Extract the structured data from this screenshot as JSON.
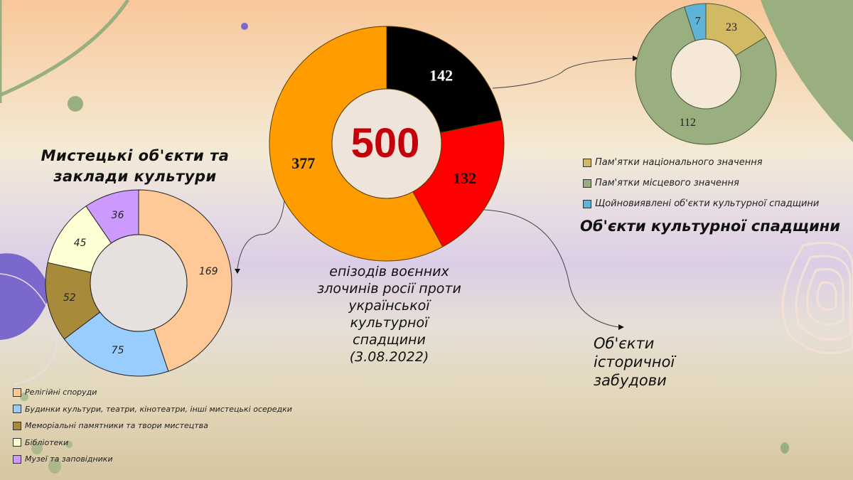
{
  "main": {
    "total": "500",
    "caption_lines": [
      "епізодів воєнних",
      "злочинів росії проти",
      "української",
      "культурної",
      "спадщини",
      "(3.08.2022)"
    ],
    "segments": [
      {
        "label": "Об'єкти культурної спадщини",
        "value": 142,
        "value_label": "142",
        "color": "#000000",
        "text_color": "#ffffff"
      },
      {
        "label": "Об'єкти історичної забудови",
        "value": 132,
        "value_label": "132",
        "color": "#ff0000",
        "text_color": "#111111"
      },
      {
        "label": "Мистецькі об'єкти та заклади культури",
        "value": 377,
        "value_label": "377",
        "color": "#ff9c00",
        "text_color": "#111111"
      }
    ]
  },
  "left": {
    "title_lines": [
      "Мистецькі об'єкти та",
      "заклади культури"
    ],
    "segments": [
      {
        "label": "Релігійні споруди",
        "value": 169,
        "value_label": "169",
        "color": "#ffc897"
      },
      {
        "label": "Будинки культури, театри, кінотеатри, інші мистецькі осередки",
        "value": 75,
        "value_label": "75",
        "color": "#99ccff"
      },
      {
        "label": "Меморіальні памятники та твори мистецтва",
        "value": 52,
        "value_label": "52",
        "color": "#a88b3a"
      },
      {
        "label": "Бібліотеки",
        "value": 45,
        "value_label": "45",
        "color": "#ffffd5"
      },
      {
        "label": "Музеї та заповідники",
        "value": 36,
        "value_label": "36",
        "color": "#cc99ff"
      }
    ]
  },
  "right": {
    "title": "Об'єкти культурної спадщини",
    "segments": [
      {
        "label": "Пам'ятки національного значення",
        "value": 23,
        "value_label": "23",
        "color": "#d2b963"
      },
      {
        "label": "Пам'ятки місцевого значення",
        "value": 112,
        "value_label": "112",
        "color": "#9aaf80"
      },
      {
        "label": "Щойновиявлені об'єкти культурної спадщини",
        "value": 7,
        "value_label": "7",
        "color": "#5fb3d6"
      }
    ]
  },
  "history": {
    "caption_lines": [
      "Об'єкти",
      "історичної",
      "забудови"
    ]
  },
  "chart_data": [
    {
      "type": "pie",
      "title": "500 епізодів воєнних злочинів росії проти української культурної спадщини (3.08.2022)",
      "categories": [
        "Об'єкти культурної спадщини",
        "Об'єкти історичної забудови",
        "Мистецькі об'єкти та заклади культури"
      ],
      "values": [
        142,
        132,
        377
      ],
      "center_label": "500",
      "donut": true
    },
    {
      "type": "pie",
      "title": "Мистецькі об'єкти та заклади культури",
      "categories": [
        "Релігійні споруди",
        "Будинки культури, театри, кінотеатри, інші мистецькі осередки",
        "Меморіальні памятники та твори мистецтва",
        "Бібліотеки",
        "Музеї та заповідники"
      ],
      "values": [
        169,
        75,
        52,
        45,
        36
      ],
      "legend_position": "bottom",
      "donut": true
    },
    {
      "type": "pie",
      "title": "Об'єкти культурної спадщини",
      "categories": [
        "Пам'ятки національного значення",
        "Пам'ятки місцевого значення",
        "Щойновиявлені об'єкти культурної спадщини"
      ],
      "values": [
        23,
        112,
        7
      ],
      "legend_position": "bottom",
      "donut": true
    }
  ]
}
